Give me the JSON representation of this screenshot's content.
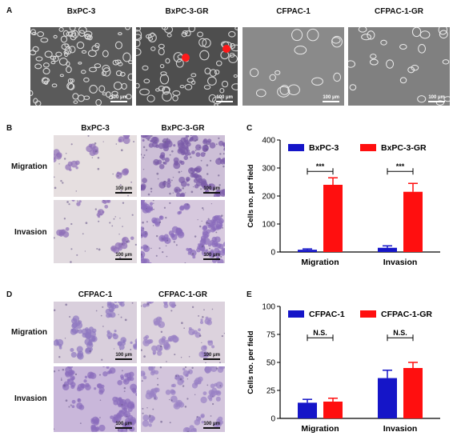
{
  "panel_letters": {
    "A": "A",
    "B": "B",
    "C": "C",
    "D": "D",
    "E": "E"
  },
  "panelA": {
    "labels": [
      "BxPC-3",
      "BxPC-3-GR",
      "CFPAC-1",
      "CFPAC-1-GR"
    ],
    "scalebar": "100 μm"
  },
  "panelB": {
    "cols": [
      "BxPC-3",
      "BxPC-3-GR"
    ],
    "rows": [
      "Migration",
      "Invasion"
    ],
    "scalebar": "100 μm"
  },
  "panelD": {
    "cols": [
      "CFPAC-1",
      "CFPAC-1-GR"
    ],
    "rows": [
      "Migration",
      "Invasion"
    ],
    "scalebar": "100 μm"
  },
  "colors": {
    "series1": "#1515c8",
    "series2": "#ff0f0f",
    "phase": "#565656",
    "stain": "#b8a8d2"
  },
  "chart_data": [
    {
      "type": "bar",
      "panel": "C",
      "categories": [
        "Migration",
        "Invasion"
      ],
      "series": [
        {
          "name": "BxPC-3",
          "values": [
            8,
            15
          ],
          "errors": [
            3,
            7
          ]
        },
        {
          "name": "BxPC-3-GR",
          "values": [
            240,
            215
          ],
          "errors": [
            25,
            30
          ]
        }
      ],
      "significance": [
        "***",
        "***"
      ],
      "ylabel": "Cells no. per field",
      "ylim": [
        0,
        400
      ],
      "yticks": [
        0,
        100,
        200,
        300,
        400
      ],
      "legend": "top"
    },
    {
      "type": "bar",
      "panel": "E",
      "categories": [
        "Migration",
        "Invasion"
      ],
      "series": [
        {
          "name": "CFPAC-1",
          "values": [
            14,
            36
          ],
          "errors": [
            3,
            7
          ]
        },
        {
          "name": "CFPAC-1-GR",
          "values": [
            15,
            45
          ],
          "errors": [
            3,
            5
          ]
        }
      ],
      "significance": [
        "N.S.",
        "N.S."
      ],
      "ylabel": "Cells no. per field",
      "ylim": [
        0,
        100
      ],
      "yticks": [
        0,
        25,
        50,
        75,
        100
      ],
      "legend": "top"
    }
  ]
}
